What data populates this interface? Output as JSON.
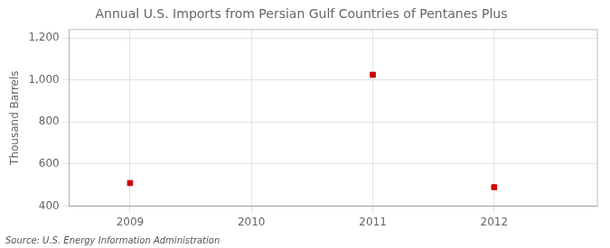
{
  "chart_data": {
    "type": "scatter",
    "title": "Annual U.S. Imports from Persian Gulf Countries of Pentanes Plus",
    "ylabel": "Thousand Barrels",
    "source": "Source: U.S. Energy Information Administration",
    "x": [
      2009,
      2011,
      2012
    ],
    "values": [
      510,
      1025,
      490
    ],
    "color": "#cc0000",
    "marker": "square",
    "xlim": [
      2008.5,
      2012.85
    ],
    "ylim": [
      400,
      1240
    ],
    "xticks": [
      2009,
      2010,
      2011,
      2012
    ],
    "yticks": [
      400,
      600,
      800,
      {
        "value": 1000,
        "label": "1,000"
      },
      {
        "value": 1200,
        "label": "1,200"
      }
    ],
    "grid": true
  }
}
